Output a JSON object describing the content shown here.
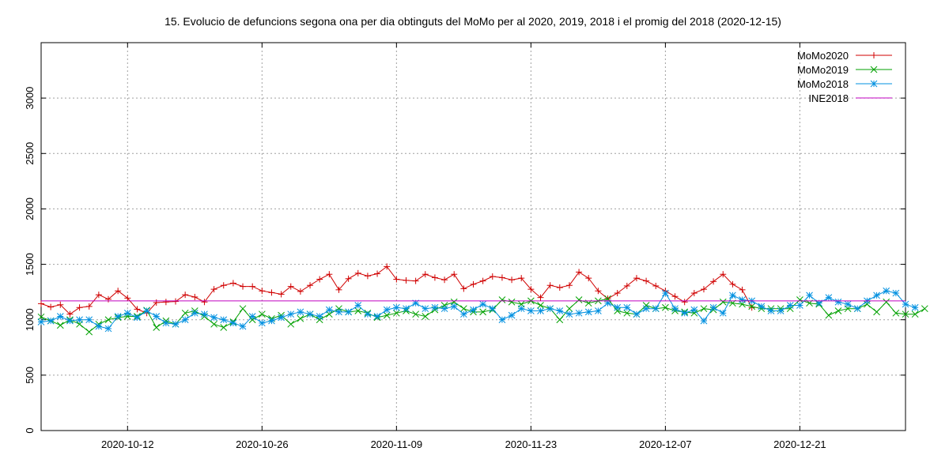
{
  "chart_data": {
    "type": "line",
    "title": "15. Evolucio de defuncions segona ona per dia obtinguts del MoMo per al 2020, 2019, 2018 i el promig del 2018 (2020-12-15)",
    "xlabel": "",
    "ylabel": "",
    "ylim": [
      0,
      3500
    ],
    "yticks": [
      0,
      500,
      1000,
      1500,
      2000,
      2500,
      3000
    ],
    "x_start": "2020-10-03",
    "x_end": "2021-01-01",
    "xticks": [
      "2020-10-12",
      "2020-10-26",
      "2020-11-09",
      "2020-11-23",
      "2020-12-07",
      "2020-12-21"
    ],
    "grid": true,
    "legend_position": "top-right",
    "series": [
      {
        "name": "MoMo2020",
        "color": "#d00000",
        "marker": "plus",
        "start": "2020-10-03",
        "values": [
          1145,
          1115,
          1135,
          1050,
          1110,
          1120,
          1225,
          1185,
          1260,
          1195,
          1095,
          1060,
          1155,
          1160,
          1165,
          1225,
          1205,
          1160,
          1275,
          1310,
          1330,
          1300,
          1300,
          1260,
          1245,
          1230,
          1300,
          1255,
          1310,
          1365,
          1410,
          1270,
          1370,
          1420,
          1395,
          1415,
          1480,
          1365,
          1355,
          1350,
          1410,
          1380,
          1360,
          1410,
          1280,
          1320,
          1350,
          1390,
          1380,
          1360,
          1375,
          1275,
          1200,
          1310,
          1290,
          1310,
          1430,
          1375,
          1260,
          1190,
          1240,
          1305,
          1375,
          1350,
          1305,
          1260,
          1210,
          1160,
          1240,
          1275,
          1345,
          1410,
          1320,
          1270,
          1110
        ]
      },
      {
        "name": "MoMo2019",
        "color": "#00a000",
        "marker": "cross",
        "start": "2020-10-03",
        "values": [
          1025,
          990,
          950,
          1000,
          960,
          890,
          960,
          1000,
          1020,
          1030,
          1030,
          1085,
          930,
          990,
          960,
          1060,
          1080,
          1030,
          960,
          930,
          980,
          1100,
          1000,
          1050,
          1010,
          1040,
          960,
          1010,
          1050,
          1000,
          1050,
          1100,
          1070,
          1080,
          1060,
          1020,
          1040,
          1060,
          1080,
          1050,
          1030,
          1090,
          1130,
          1160,
          1100,
          1070,
          1070,
          1090,
          1180,
          1160,
          1140,
          1170,
          1130,
          1100,
          1000,
          1100,
          1180,
          1150,
          1170,
          1190,
          1080,
          1060,
          1050,
          1130,
          1100,
          1110,
          1080,
          1070,
          1060,
          1100,
          1090,
          1160,
          1150,
          1140,
          1120,
          1100,
          1100,
          1100,
          1100,
          1180,
          1150,
          1140,
          1040,
          1080,
          1100,
          1100,
          1140,
          1070,
          1160,
          1060,
          1050,
          1050,
          1100
        ]
      },
      {
        "name": "MoMo2018",
        "color": "#0090e0",
        "marker": "star",
        "start": "2020-10-03",
        "values": [
          980,
          990,
          1030,
          990,
          1000,
          1000,
          940,
          920,
          1030,
          1060,
          1020,
          1080,
          1030,
          970,
          960,
          1000,
          1060,
          1050,
          1020,
          1000,
          970,
          940,
          1030,
          970,
          990,
          1020,
          1050,
          1070,
          1050,
          1030,
          1090,
          1070,
          1070,
          1130,
          1050,
          1030,
          1090,
          1110,
          1100,
          1150,
          1100,
          1110,
          1100,
          1120,
          1050,
          1090,
          1140,
          1100,
          1000,
          1040,
          1100,
          1080,
          1080,
          1100,
          1080,
          1050,
          1060,
          1070,
          1080,
          1150,
          1110,
          1110,
          1050,
          1100,
          1100,
          1240,
          1100,
          1060,
          1090,
          990,
          1110,
          1060,
          1220,
          1180,
          1170,
          1120,
          1080,
          1080,
          1130,
          1130,
          1220,
          1150,
          1200,
          1160,
          1140,
          1100,
          1170,
          1220,
          1260,
          1240,
          1140,
          1110
        ]
      },
      {
        "name": "INE2018",
        "color": "#c000c0",
        "marker": "none",
        "constant": 1170
      }
    ]
  }
}
